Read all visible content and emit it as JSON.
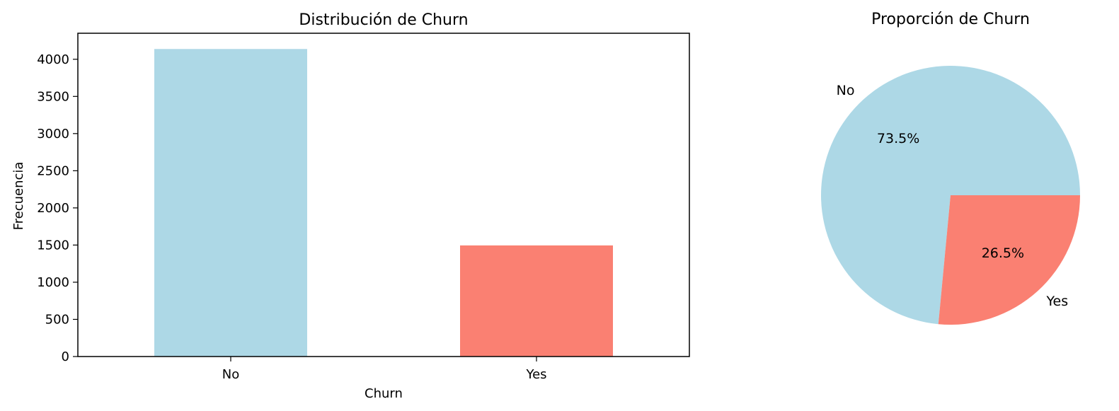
{
  "chart_data": [
    {
      "type": "bar",
      "title": "Distribución de Churn",
      "xlabel": "Churn",
      "ylabel": "Frecuencia",
      "categories": [
        "No",
        "Yes"
      ],
      "values": [
        4138,
        1495
      ],
      "colors": [
        "#add8e6",
        "#fa8072"
      ],
      "ylim": [
        0,
        4350
      ],
      "yticks": [
        0,
        500,
        1000,
        1500,
        2000,
        2500,
        3000,
        3500,
        4000
      ],
      "grid": false
    },
    {
      "type": "pie",
      "title": "Proporción de Churn",
      "labels": [
        "No",
        "Yes"
      ],
      "values": [
        73.5,
        26.5
      ],
      "pct_labels": [
        "73.5%",
        "26.5%"
      ],
      "colors": [
        "#add8e6",
        "#fa8072"
      ]
    }
  ]
}
